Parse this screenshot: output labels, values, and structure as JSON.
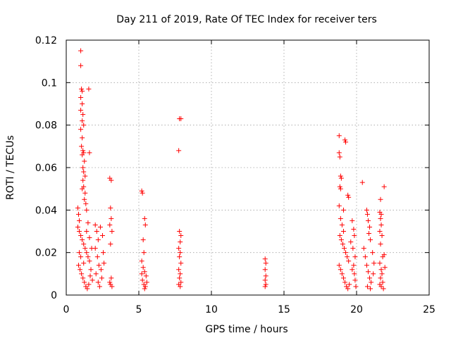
{
  "chart_data": {
    "type": "scatter",
    "title": "Day 211 of 2019, Rate Of TEC Index for receiver ters",
    "xlabel": "GPS time / hours",
    "ylabel": "ROTI / TECUs",
    "xlim": [
      0,
      25
    ],
    "ylim": [
      0,
      0.12
    ],
    "x_ticks": [
      "0",
      "5",
      "10",
      "15",
      "20",
      "25"
    ],
    "y_ticks": [
      "0",
      "0.02",
      "0.04",
      "0.06",
      "0.08",
      "0.1",
      "0.12"
    ],
    "grid": true,
    "marker": "+",
    "marker_color": "#ff0000",
    "points": [
      [
        1.0,
        0.115
      ],
      [
        1.0,
        0.108
      ],
      [
        1.05,
        0.097
      ],
      [
        1.1,
        0.096
      ],
      [
        1.0,
        0.093
      ],
      [
        1.1,
        0.09
      ],
      [
        1.0,
        0.087
      ],
      [
        1.15,
        0.085
      ],
      [
        1.1,
        0.082
      ],
      [
        1.2,
        0.08
      ],
      [
        1.0,
        0.078
      ],
      [
        1.1,
        0.074
      ],
      [
        1.05,
        0.07
      ],
      [
        1.15,
        0.068
      ],
      [
        1.2,
        0.067
      ],
      [
        1.1,
        0.066
      ],
      [
        1.25,
        0.063
      ],
      [
        1.15,
        0.06
      ],
      [
        1.2,
        0.058
      ],
      [
        1.3,
        0.056
      ],
      [
        1.15,
        0.054
      ],
      [
        1.2,
        0.051
      ],
      [
        1.1,
        0.05
      ],
      [
        1.3,
        0.048
      ],
      [
        1.25,
        0.045
      ],
      [
        1.35,
        0.043
      ],
      [
        1.4,
        0.04
      ],
      [
        1.55,
        0.097
      ],
      [
        1.6,
        0.067
      ],
      [
        0.8,
        0.041
      ],
      [
        0.85,
        0.038
      ],
      [
        0.9,
        0.035
      ],
      [
        0.8,
        0.032
      ],
      [
        0.9,
        0.03
      ],
      [
        1.0,
        0.028
      ],
      [
        1.1,
        0.026
      ],
      [
        1.2,
        0.024
      ],
      [
        1.3,
        0.022
      ],
      [
        1.4,
        0.02
      ],
      [
        1.5,
        0.018
      ],
      [
        1.6,
        0.016
      ],
      [
        0.85,
        0.014
      ],
      [
        0.95,
        0.012
      ],
      [
        1.05,
        0.01
      ],
      [
        1.15,
        0.008
      ],
      [
        1.25,
        0.006
      ],
      [
        1.35,
        0.004
      ],
      [
        1.45,
        0.003
      ],
      [
        1.55,
        0.005
      ],
      [
        1.65,
        0.009
      ],
      [
        0.9,
        0.02
      ],
      [
        1.0,
        0.018
      ],
      [
        1.2,
        0.015
      ],
      [
        1.4,
        0.03
      ],
      [
        1.5,
        0.034
      ],
      [
        1.6,
        0.027
      ],
      [
        1.7,
        0.012
      ],
      [
        1.75,
        0.022
      ],
      [
        1.8,
        0.007
      ],
      [
        2.0,
        0.033
      ],
      [
        2.1,
        0.03
      ],
      [
        2.2,
        0.026
      ],
      [
        2.0,
        0.022
      ],
      [
        2.15,
        0.018
      ],
      [
        2.25,
        0.014
      ],
      [
        2.05,
        0.01
      ],
      [
        2.2,
        0.006
      ],
      [
        2.3,
        0.004
      ],
      [
        2.4,
        0.012
      ],
      [
        2.5,
        0.028
      ],
      [
        2.55,
        0.02
      ],
      [
        2.6,
        0.015
      ],
      [
        2.45,
        0.008
      ],
      [
        2.35,
        0.032
      ],
      [
        3.0,
        0.055
      ],
      [
        3.1,
        0.054
      ],
      [
        3.05,
        0.041
      ],
      [
        3.1,
        0.036
      ],
      [
        3.0,
        0.033
      ],
      [
        3.15,
        0.03
      ],
      [
        3.05,
        0.024
      ],
      [
        3.1,
        0.008
      ],
      [
        3.0,
        0.006
      ],
      [
        3.15,
        0.004
      ],
      [
        3.05,
        0.005
      ],
      [
        5.2,
        0.049
      ],
      [
        5.25,
        0.048
      ],
      [
        5.4,
        0.036
      ],
      [
        5.45,
        0.033
      ],
      [
        5.3,
        0.026
      ],
      [
        5.35,
        0.02
      ],
      [
        5.2,
        0.016
      ],
      [
        5.3,
        0.013
      ],
      [
        5.4,
        0.011
      ],
      [
        5.5,
        0.009
      ],
      [
        5.25,
        0.007
      ],
      [
        5.35,
        0.005
      ],
      [
        5.45,
        0.004
      ],
      [
        5.55,
        0.006
      ],
      [
        5.2,
        0.01
      ],
      [
        5.4,
        0.003
      ],
      [
        7.8,
        0.083
      ],
      [
        7.9,
        0.083
      ],
      [
        7.75,
        0.068
      ],
      [
        7.8,
        0.03
      ],
      [
        7.9,
        0.028
      ],
      [
        7.85,
        0.025
      ],
      [
        7.75,
        0.022
      ],
      [
        7.85,
        0.02
      ],
      [
        7.8,
        0.018
      ],
      [
        7.9,
        0.015
      ],
      [
        7.75,
        0.012
      ],
      [
        7.85,
        0.01
      ],
      [
        7.8,
        0.008
      ],
      [
        7.9,
        0.006
      ],
      [
        7.75,
        0.005
      ],
      [
        7.85,
        0.004
      ],
      [
        13.7,
        0.017
      ],
      [
        13.75,
        0.015
      ],
      [
        13.7,
        0.012
      ],
      [
        13.75,
        0.009
      ],
      [
        13.7,
        0.007
      ],
      [
        13.75,
        0.005
      ],
      [
        13.7,
        0.004
      ],
      [
        18.8,
        0.075
      ],
      [
        18.8,
        0.067
      ],
      [
        18.85,
        0.065
      ],
      [
        19.2,
        0.073
      ],
      [
        19.25,
        0.072
      ],
      [
        18.9,
        0.056
      ],
      [
        18.95,
        0.055
      ],
      [
        18.85,
        0.051
      ],
      [
        18.9,
        0.05
      ],
      [
        19.4,
        0.047
      ],
      [
        19.45,
        0.046
      ],
      [
        18.8,
        0.042
      ],
      [
        19.1,
        0.04
      ],
      [
        18.9,
        0.036
      ],
      [
        19.0,
        0.033
      ],
      [
        19.1,
        0.03
      ],
      [
        18.85,
        0.028
      ],
      [
        18.95,
        0.026
      ],
      [
        19.05,
        0.024
      ],
      [
        19.15,
        0.022
      ],
      [
        19.25,
        0.02
      ],
      [
        19.35,
        0.018
      ],
      [
        19.45,
        0.016
      ],
      [
        18.8,
        0.014
      ],
      [
        18.9,
        0.012
      ],
      [
        19.0,
        0.01
      ],
      [
        19.1,
        0.008
      ],
      [
        19.2,
        0.006
      ],
      [
        19.3,
        0.004
      ],
      [
        19.4,
        0.003
      ],
      [
        19.5,
        0.005
      ],
      [
        19.6,
        0.025
      ],
      [
        19.7,
        0.035
      ],
      [
        19.8,
        0.031
      ],
      [
        19.85,
        0.028
      ],
      [
        19.75,
        0.022
      ],
      [
        19.9,
        0.018
      ],
      [
        19.8,
        0.014
      ],
      [
        19.85,
        0.01
      ],
      [
        19.9,
        0.007
      ],
      [
        19.95,
        0.004
      ],
      [
        19.7,
        0.012
      ],
      [
        20.4,
        0.053
      ],
      [
        20.7,
        0.04
      ],
      [
        20.75,
        0.038
      ],
      [
        20.8,
        0.035
      ],
      [
        20.9,
        0.032
      ],
      [
        20.85,
        0.029
      ],
      [
        20.95,
        0.026
      ],
      [
        20.5,
        0.022
      ],
      [
        20.6,
        0.018
      ],
      [
        20.7,
        0.014
      ],
      [
        20.8,
        0.011
      ],
      [
        20.9,
        0.008
      ],
      [
        21.0,
        0.006
      ],
      [
        20.75,
        0.004
      ],
      [
        20.95,
        0.003
      ],
      [
        21.1,
        0.02
      ],
      [
        21.2,
        0.015
      ],
      [
        21.15,
        0.01
      ],
      [
        21.65,
        0.045
      ],
      [
        21.9,
        0.051
      ],
      [
        21.6,
        0.039
      ],
      [
        21.7,
        0.038
      ],
      [
        21.65,
        0.036
      ],
      [
        21.7,
        0.033
      ],
      [
        21.6,
        0.03
      ],
      [
        21.75,
        0.028
      ],
      [
        21.65,
        0.024
      ],
      [
        21.8,
        0.018
      ],
      [
        21.6,
        0.015
      ],
      [
        21.7,
        0.012
      ],
      [
        21.75,
        0.01
      ],
      [
        21.65,
        0.008
      ],
      [
        21.8,
        0.006
      ],
      [
        21.7,
        0.004
      ],
      [
        21.85,
        0.003
      ],
      [
        21.9,
        0.019
      ],
      [
        21.95,
        0.013
      ],
      [
        21.6,
        0.005
      ]
    ]
  }
}
